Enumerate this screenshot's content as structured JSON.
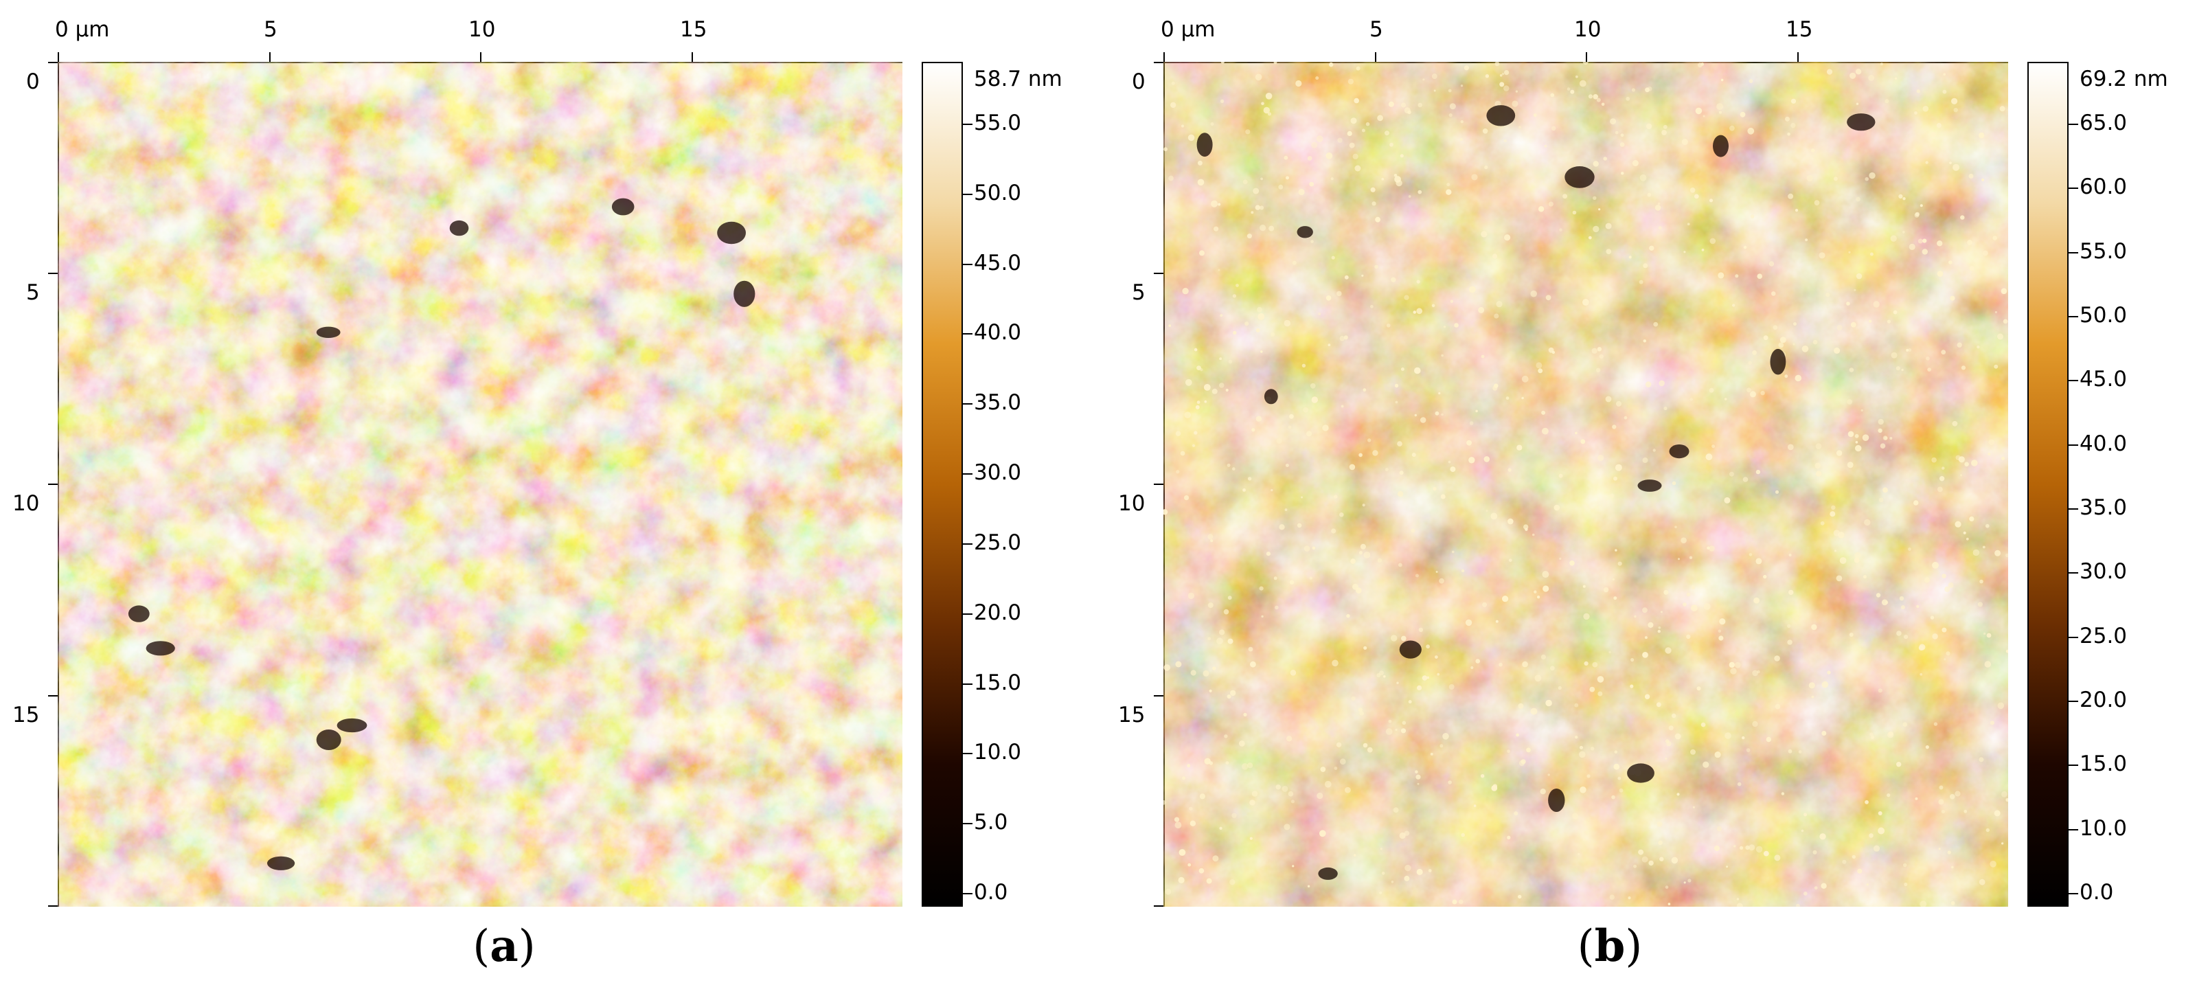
{
  "panels": [
    {
      "caption": "a",
      "x_ticks": [
        "0 µm",
        "5",
        "10",
        "15"
      ],
      "y_ticks": [
        "0",
        "5",
        "10",
        "15"
      ],
      "colorbar": {
        "max_label": "58.7 nm",
        "labels": [
          "55.0",
          "50.0",
          "45.0",
          "40.0",
          "35.0",
          "30.0",
          "25.0",
          "20.0",
          "15.0",
          "10.0",
          "5.0",
          "0.0"
        ],
        "stops": [
          "#ffffff",
          "#f3d9a6",
          "#e39a2b",
          "#b66407",
          "#6b2e02",
          "#1e0600",
          "#000000"
        ]
      },
      "image_palette": {
        "dark": "#3a1400",
        "mid": "#b26a0c",
        "light": "#f6d58a",
        "highlight": "#fff6d8"
      }
    },
    {
      "caption": "b",
      "x_ticks": [
        "0 µm",
        "5",
        "10",
        "15"
      ],
      "y_ticks": [
        "0",
        "5",
        "10",
        "15"
      ],
      "colorbar": {
        "max_label": "69.2 nm",
        "labels": [
          "65.0",
          "60.0",
          "55.0",
          "50.0",
          "45.0",
          "40.0",
          "35.0",
          "30.0",
          "25.0",
          "20.0",
          "15.0",
          "10.0",
          "0.0"
        ],
        "stops": [
          "#ffffff",
          "#f3d9a6",
          "#e39a2b",
          "#b66407",
          "#6b2e02",
          "#1e0600",
          "#000000"
        ]
      },
      "image_palette": {
        "dark": "#3a1400",
        "mid": "#9a5208",
        "light": "#e8a13a",
        "highlight": "#fff3cc"
      }
    }
  ]
}
